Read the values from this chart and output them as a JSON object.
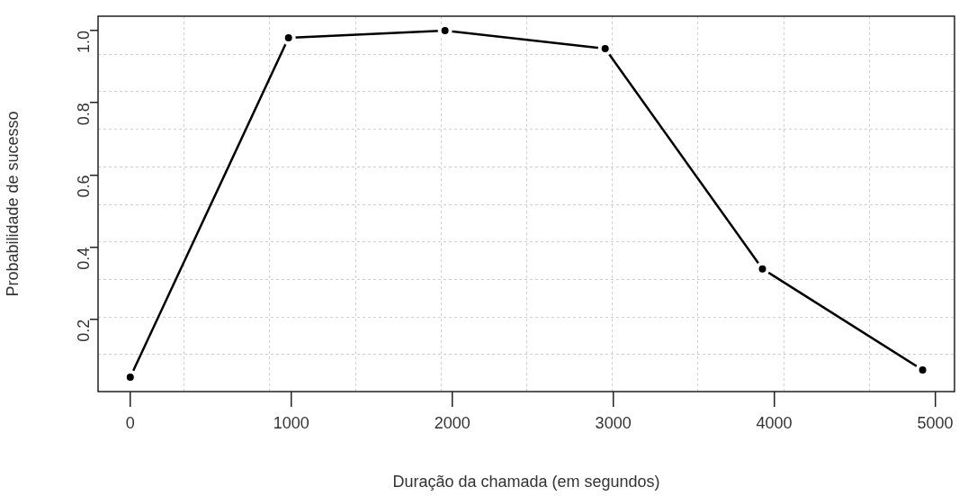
{
  "chart_data": {
    "type": "line",
    "xlabel": "Duração da chamada (em segundos)",
    "ylabel": "Probabilidade de sucesso",
    "series": [
      {
        "color": "#000000",
        "x": [
          0,
          983,
          1955,
          2950,
          3927,
          4922
        ],
        "values": [
          0.04,
          0.98,
          1.0,
          0.95,
          0.34,
          0.06
        ]
      }
    ],
    "xlim": [
      -200,
      5120
    ],
    "xticks": [
      0,
      1000,
      2000,
      3000,
      4000,
      5000
    ],
    "ylim": [
      0,
      1.04
    ],
    "yticks": [
      {
        "value": 0.2,
        "label": "0.2"
      },
      {
        "value": 0.4,
        "label": "0.4"
      },
      {
        "value": 0.6,
        "label": "0.6"
      },
      {
        "value": 0.8,
        "label": "0.8"
      },
      {
        "value": 1,
        "label": "1.0"
      }
    ],
    "grid": true,
    "marker": "circle",
    "line_style": "solid",
    "legend": false
  }
}
